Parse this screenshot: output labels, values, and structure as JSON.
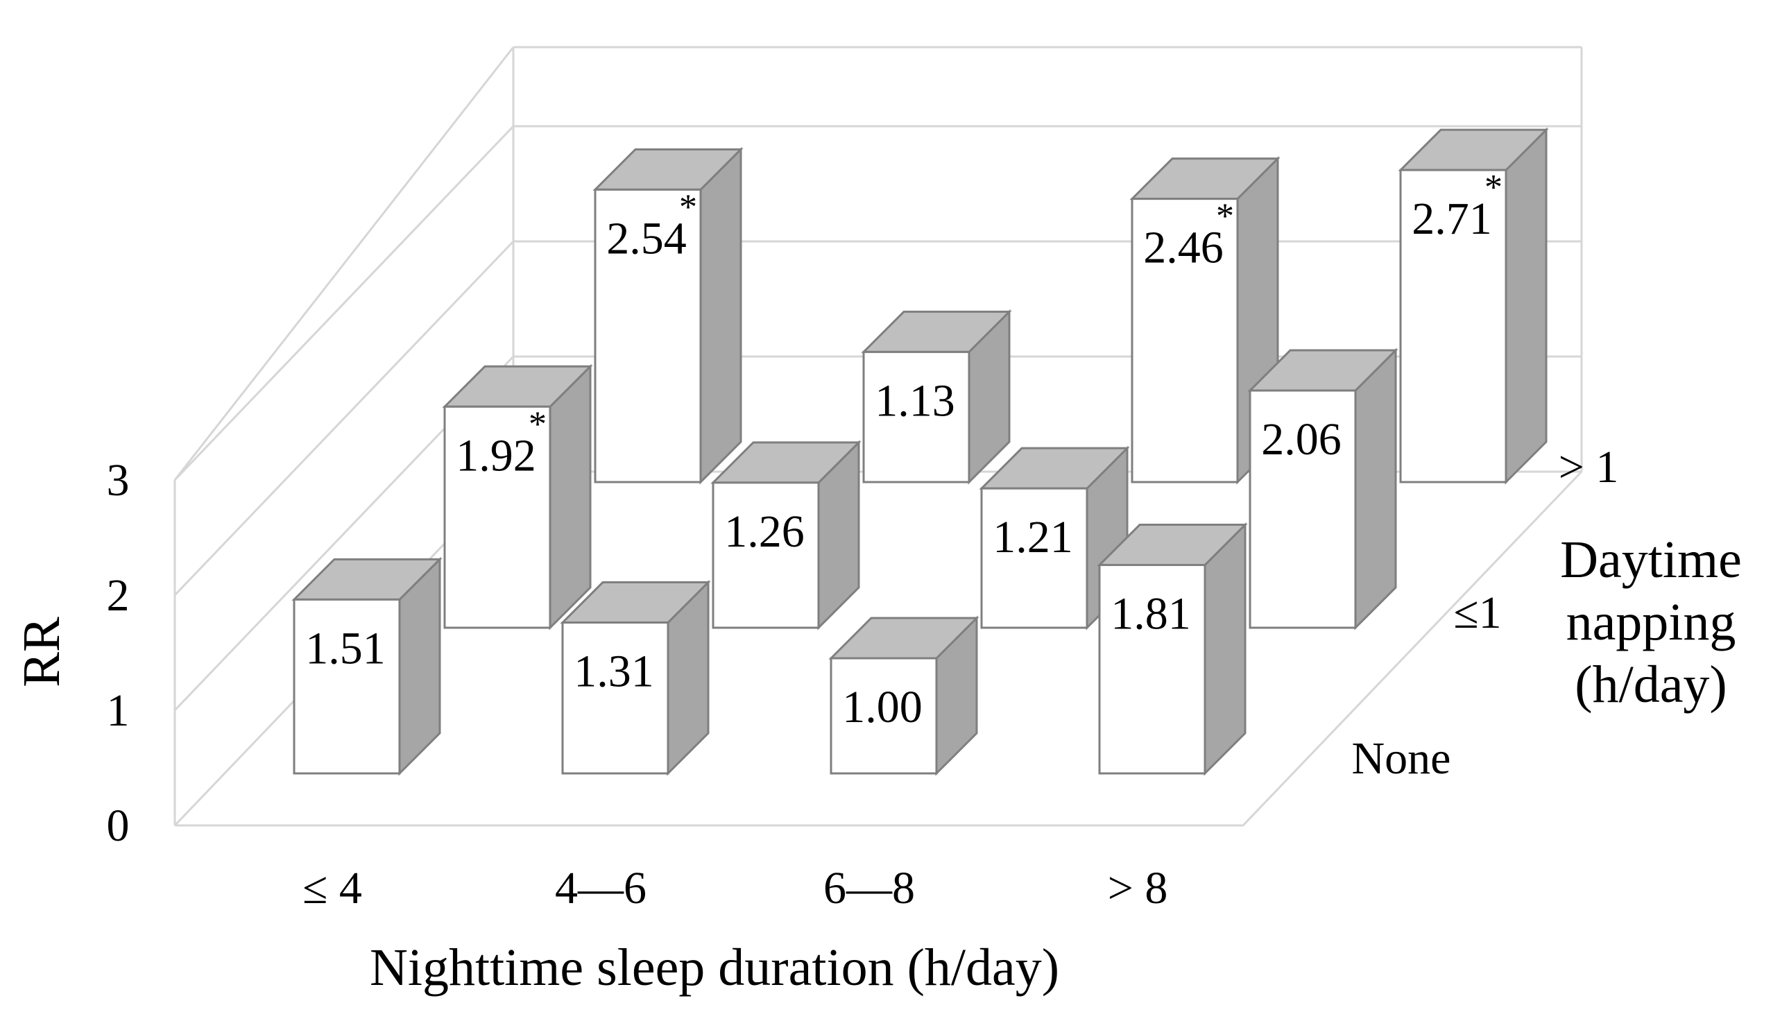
{
  "chart_data": {
    "type": "bar",
    "subtype": "3d-bar",
    "xlabel": "Nighttime sleep duration (h/day)",
    "ylabel": "RR",
    "zlabel": [
      "Daytime",
      "napping",
      "(h/day)"
    ],
    "categories": [
      "≤ 4",
      "4—6",
      "6—8",
      "> 8"
    ],
    "y_ticks": [
      "0",
      "1",
      "2",
      "3"
    ],
    "ylim": [
      0,
      3
    ],
    "series": [
      {
        "name": "None",
        "values": [
          1.51,
          1.31,
          1.0,
          1.81
        ],
        "labels": [
          "1.51",
          "1.31",
          "1.00",
          "1.81"
        ],
        "significant": [
          false,
          false,
          false,
          false
        ]
      },
      {
        "name": "≤1",
        "values": [
          1.92,
          1.26,
          1.21,
          2.06
        ],
        "labels": [
          "1.92",
          "1.26",
          "1.21",
          "2.06"
        ],
        "significant": [
          true,
          false,
          false,
          false
        ]
      },
      {
        "name": "> 1",
        "values": [
          2.54,
          1.13,
          2.46,
          2.71
        ],
        "labels": [
          "2.54",
          "1.13",
          "2.46",
          "2.71"
        ],
        "significant": [
          true,
          false,
          true,
          true
        ]
      }
    ],
    "significance_marker": "*",
    "grid": true
  }
}
